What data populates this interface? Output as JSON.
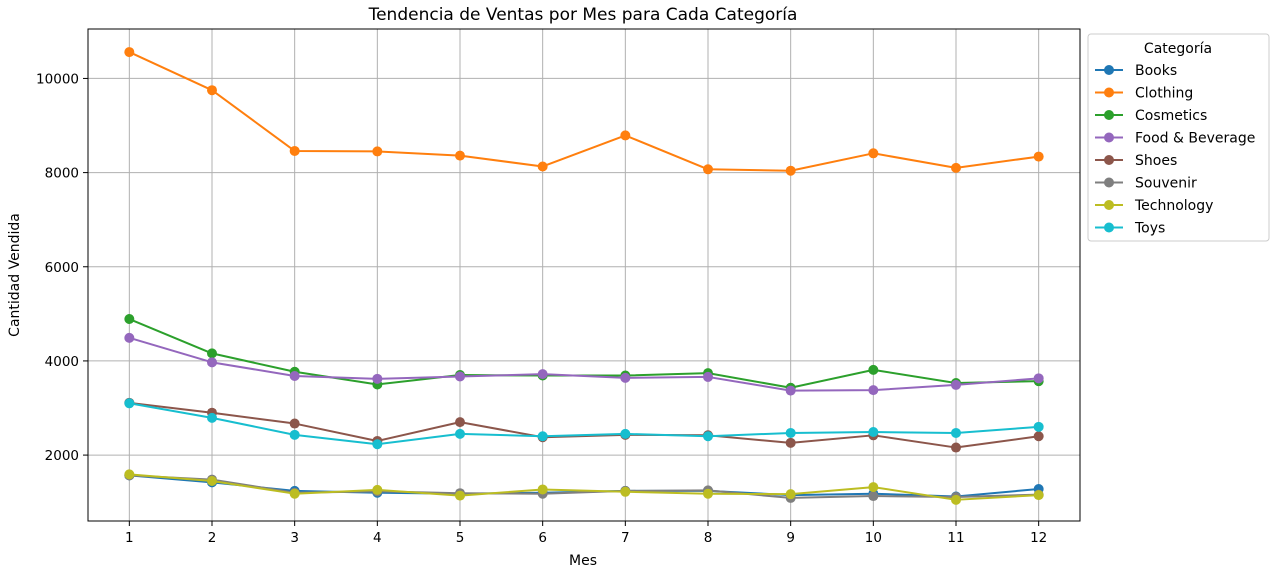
{
  "chart_data": {
    "type": "line",
    "title": "Tendencia de Ventas por Mes para Cada Categoría",
    "xlabel": "Mes",
    "ylabel": "Cantidad Vendida",
    "x": [
      1,
      2,
      3,
      4,
      5,
      6,
      7,
      8,
      9,
      10,
      11,
      12
    ],
    "x_ticks": [
      "1",
      "2",
      "3",
      "4",
      "5",
      "6",
      "7",
      "8",
      "9",
      "10",
      "11",
      "12"
    ],
    "y_ticks": [
      2000,
      4000,
      6000,
      8000,
      10000
    ],
    "y_tick_labels": [
      "2000",
      "4000",
      "6000",
      "8000",
      "10000"
    ],
    "xlim": [
      0.5,
      12.5
    ],
    "ylim": [
      600,
      11050
    ],
    "grid": true,
    "legend": {
      "title": "Categoría",
      "placement": "upper-right-outside"
    },
    "series": [
      {
        "name": "Books",
        "color": "#1f77b4",
        "values": [
          1570,
          1420,
          1240,
          1200,
          1180,
          1200,
          1240,
          1240,
          1150,
          1180,
          1120,
          1280
        ]
      },
      {
        "name": "Clothing",
        "color": "#ff7f0e",
        "values": [
          10560,
          9750,
          8460,
          8450,
          8360,
          8130,
          8790,
          8070,
          8040,
          8410,
          8100,
          8340
        ]
      },
      {
        "name": "Cosmetics",
        "color": "#2ca02c",
        "values": [
          4890,
          4160,
          3770,
          3500,
          3700,
          3690,
          3690,
          3740,
          3430,
          3810,
          3530,
          3570
        ]
      },
      {
        "name": "Food & Beverage",
        "color": "#9467bd",
        "values": [
          4490,
          3970,
          3680,
          3620,
          3670,
          3720,
          3640,
          3660,
          3370,
          3380,
          3490,
          3630
        ]
      },
      {
        "name": "Shoes",
        "color": "#8c564b",
        "values": [
          3110,
          2900,
          2670,
          2300,
          2700,
          2380,
          2430,
          2420,
          2260,
          2420,
          2160,
          2400
        ]
      },
      {
        "name": "Souvenir",
        "color": "#7f7f7f",
        "values": [
          1570,
          1480,
          1200,
          1230,
          1190,
          1180,
          1240,
          1250,
          1090,
          1130,
          1110,
          1160
        ]
      },
      {
        "name": "Technology",
        "color": "#bcbd22",
        "values": [
          1590,
          1450,
          1180,
          1260,
          1140,
          1270,
          1220,
          1180,
          1170,
          1320,
          1050,
          1150
        ]
      },
      {
        "name": "Toys",
        "color": "#17becf",
        "values": [
          3100,
          2790,
          2430,
          2230,
          2450,
          2400,
          2450,
          2400,
          2470,
          2490,
          2470,
          2600
        ]
      }
    ]
  }
}
